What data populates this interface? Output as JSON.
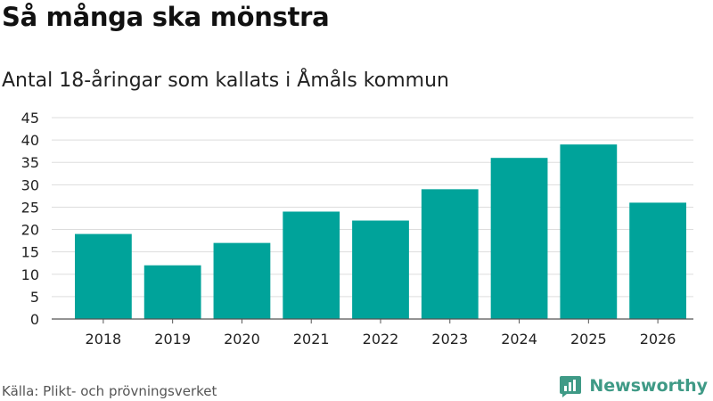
{
  "title": "Så många ska mönstra",
  "subtitle": "Antal 18-åringar som kallats i Åmåls kommun",
  "source": "Källa: Plikt- och prövningsverket",
  "brand": {
    "name": "Newsworthy",
    "color": "#3f9a86"
  },
  "colors": {
    "bar": "#00a39a",
    "grid": "#dddddd",
    "axis": "#555555"
  },
  "chart_data": {
    "type": "bar",
    "title": "Så många ska mönstra",
    "subtitle": "Antal 18-åringar som kallats i Åmåls kommun",
    "xlabel": "",
    "ylabel": "",
    "categories": [
      "2018",
      "2019",
      "2020",
      "2021",
      "2022",
      "2023",
      "2024",
      "2025",
      "2026"
    ],
    "values": [
      19,
      12,
      17,
      24,
      22,
      29,
      36,
      39,
      26
    ],
    "ylim": [
      0,
      45
    ],
    "yticks": [
      0,
      5,
      10,
      15,
      20,
      25,
      30,
      35,
      40,
      45
    ],
    "grid": true,
    "legend": "none"
  }
}
